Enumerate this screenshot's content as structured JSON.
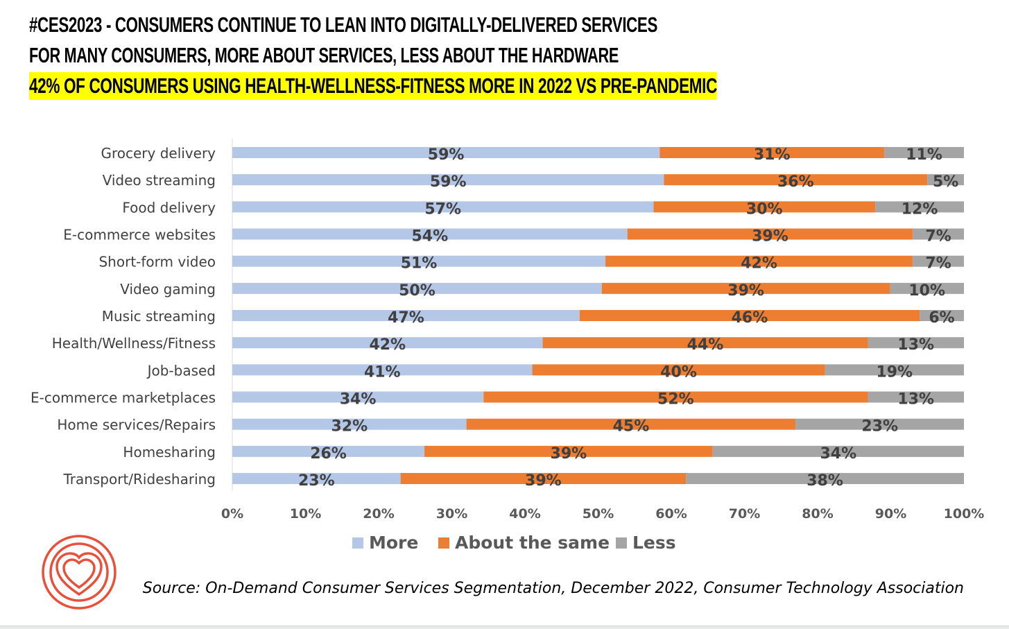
{
  "header": {
    "title_line1": "#CES2023 - CONSUMERS CONTINUE TO LEAN INTO DIGITALLY-DELIVERED SERVICES",
    "title_line2": "FOR MANY CONSUMERS, MORE ABOUT SERVICES, LESS ABOUT THE HARDWARE",
    "title_line3_highlighted": "42% OF CONSUMERS USING HEALTH-WELLNESS-FITNESS MORE IN 2022 VS PRE-PANDEMIC",
    "highlight_color": "#ffff00"
  },
  "chart_data": {
    "type": "bar",
    "orientation": "horizontal",
    "stacked": "percent",
    "categories": [
      "Grocery delivery",
      "Video streaming",
      "Food delivery",
      "E-commerce websites",
      "Short-form video",
      "Video gaming",
      "Music streaming",
      "Health/Wellness/Fitness",
      "Job-based",
      "E-commerce marketplaces",
      "Home services/Repairs",
      "Homesharing",
      "Transport/Ridesharing"
    ],
    "series": [
      {
        "name": "More",
        "color": "#b4c7e7",
        "values": [
          59,
          59,
          57,
          54,
          51,
          50,
          47,
          42,
          41,
          34,
          32,
          26,
          23
        ]
      },
      {
        "name": "About the same",
        "color": "#ed7d31",
        "values": [
          31,
          36,
          30,
          39,
          42,
          39,
          46,
          44,
          40,
          52,
          45,
          39,
          39
        ]
      },
      {
        "name": "Less",
        "color": "#a5a5a5",
        "values": [
          11,
          5,
          12,
          7,
          7,
          10,
          6,
          13,
          19,
          13,
          23,
          34,
          38
        ]
      }
    ],
    "xlim": [
      0,
      100
    ],
    "xticks": [
      "0%",
      "10%",
      "20%",
      "30%",
      "40%",
      "50%",
      "60%",
      "70%",
      "80%",
      "90%",
      "100%"
    ],
    "data_labels": true,
    "grid": false,
    "legend_placement": "bottom"
  },
  "footer": {
    "source": "Source: On-Demand Consumer Services Segmentation, December 2022, Consumer Technology Association",
    "logo_icon": "concentric-heart-logo",
    "logo_color": "#e8503a"
  }
}
